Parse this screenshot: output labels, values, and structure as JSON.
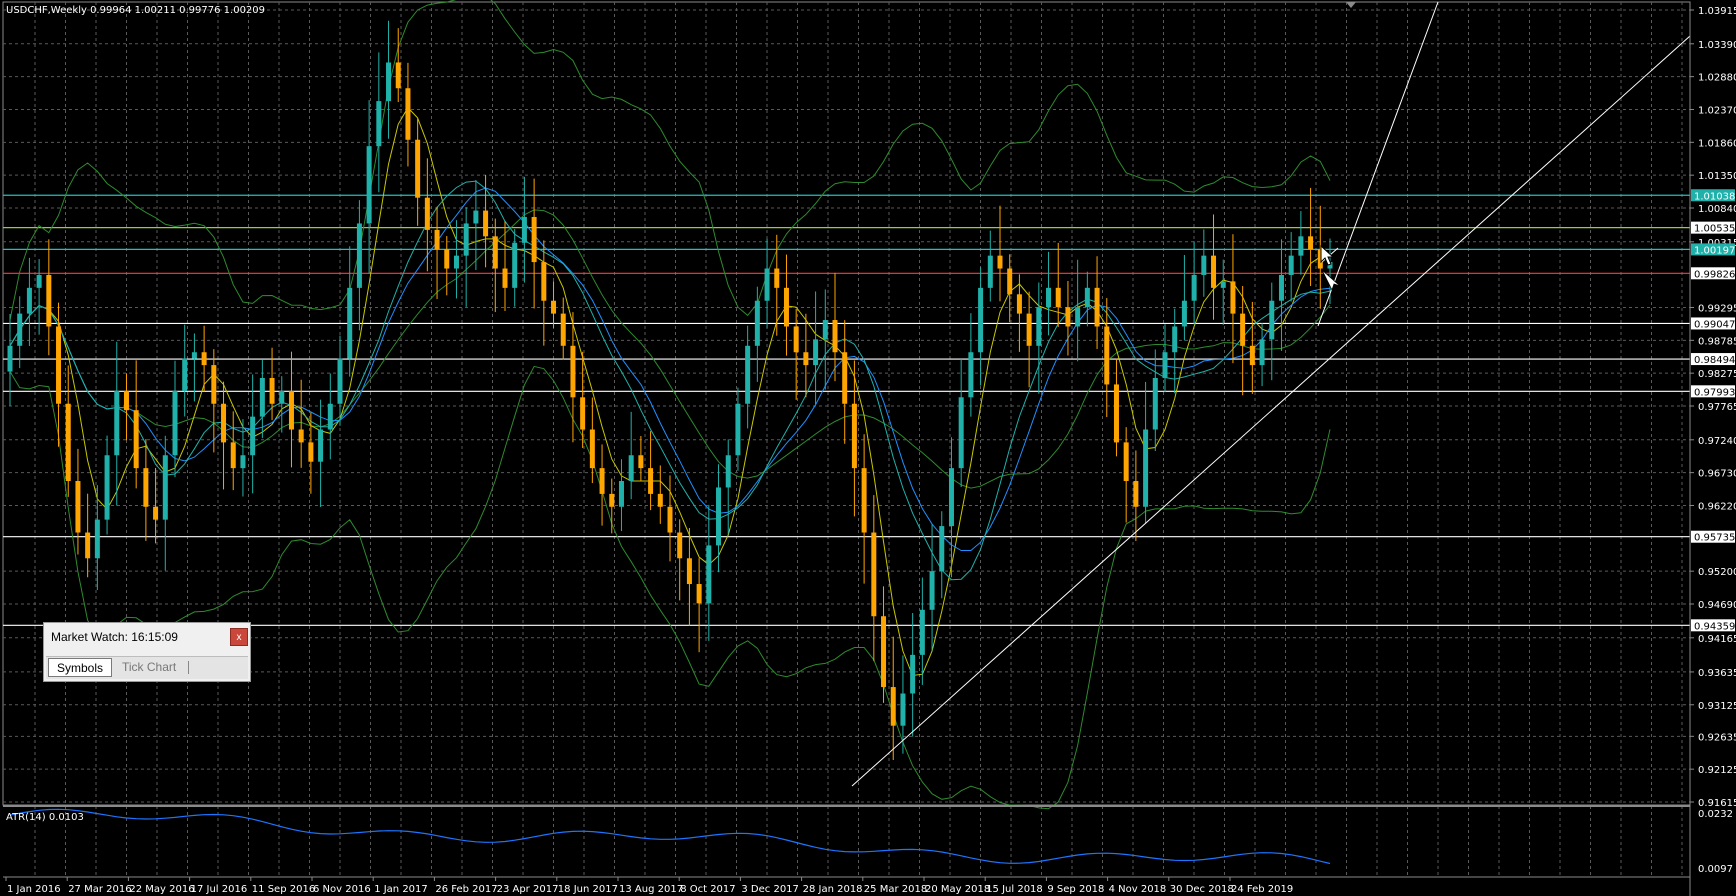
{
  "header": {
    "info": "USDCHF,Weekly  0.99964 1.00211 0.99776 1.00209"
  },
  "price_axis": {
    "labels": [
      "1.03915",
      "1.03390",
      "1.02880",
      "1.02370",
      "1.01860",
      "1.01350",
      "1.00840",
      "1.00315",
      "0.99295",
      "0.98785",
      "0.98275",
      "0.97765",
      "0.97240",
      "0.96730",
      "0.96220",
      "0.95200",
      "0.94690",
      "0.94165",
      "0.93635",
      "0.93125",
      "0.92635",
      "0.92125",
      "0.91615"
    ],
    "levels": [
      "1.01038",
      "1.00535",
      "1.00197",
      "0.99826",
      "0.99047",
      "0.98494",
      "0.97993",
      "0.95735",
      "0.94359"
    ]
  },
  "time_axis": {
    "labels": [
      "1 Jan 2016",
      "27 Mar 2016",
      "22 May 2016",
      "17 Jul 2016",
      "11 Sep 2016",
      "6 Nov 2016",
      "1 Jan 2017",
      "26 Feb 2017",
      "23 Apr 2017",
      "18 Jun 2017",
      "13 Aug 2017",
      "8 Oct 2017",
      "3 Dec 2017",
      "28 Jan 2018",
      "25 Mar 2018",
      "20 May 2018",
      "15 Jul 2018",
      "9 Sep 2018",
      "4 Nov 2018",
      "30 Dec 2018",
      "24 Feb 2019"
    ]
  },
  "indicator": {
    "label": "ATR(14) 0.0103",
    "axis_labels": [
      "0.0232",
      "0.0097"
    ]
  },
  "market_watch": {
    "title": "Market Watch: 16:15:09",
    "close_label": "x",
    "tabs": [
      "Symbols",
      "Tick Chart"
    ],
    "tab_separator": "|"
  },
  "colors": {
    "background": "#000000",
    "grid": "#5a5a5a",
    "bull": "#20b2aa",
    "bear": "#ffa500",
    "bands": "#2e8b2e",
    "ma_fast": "#c8c800",
    "ma_slow": "#1e90ff",
    "ma_teal": "#20b2aa",
    "trendline": "#ffffff",
    "atr": "#1e74ff",
    "tag_cyan": "#20b2aa",
    "tag_white": "#ffffff",
    "level_cyan": "#20c0c0",
    "level_red": "#ff3b3b",
    "level_green": "#9acd32",
    "level_white": "#ffffff"
  },
  "chart_data": {
    "type": "candlestick",
    "symbol": "USDCHF",
    "timeframe": "Weekly",
    "last_bar": {
      "open": 0.99964,
      "high": 1.00211,
      "low": 0.99776,
      "close": 1.00209
    },
    "ylim": [
      0.91615,
      1.03915
    ],
    "horizontal_levels": [
      {
        "value": 1.01038,
        "style": "cyan"
      },
      {
        "value": 1.00535,
        "style": "green"
      },
      {
        "value": 1.00197,
        "style": "cyan"
      },
      {
        "value": 0.99826,
        "style": "red"
      },
      {
        "value": 0.99047,
        "style": "white"
      },
      {
        "value": 0.98494,
        "style": "white"
      },
      {
        "value": 0.97993,
        "style": "white"
      },
      {
        "value": 0.95735,
        "style": "white"
      },
      {
        "value": 0.94359,
        "style": "white"
      }
    ],
    "close_series": [
      0.987,
      0.992,
      0.996,
      0.998,
      0.99,
      0.978,
      0.966,
      0.958,
      0.954,
      0.96,
      0.97,
      0.98,
      0.977,
      0.968,
      0.962,
      0.96,
      0.97,
      0.98,
      0.985,
      0.986,
      0.984,
      0.978,
      0.972,
      0.968,
      0.97,
      0.976,
      0.982,
      0.978,
      0.98,
      0.974,
      0.972,
      0.969,
      0.974,
      0.978,
      0.985,
      0.996,
      1.006,
      1.018,
      1.025,
      1.031,
      1.027,
      1.019,
      1.01,
      1.005,
      1.002,
      0.999,
      1.001,
      1.006,
      1.008,
      1.004,
      0.999,
      0.996,
      1.003,
      1.007,
      1.0,
      0.994,
      0.992,
      0.987,
      0.979,
      0.974,
      0.968,
      0.964,
      0.962,
      0.966,
      0.97,
      0.968,
      0.964,
      0.962,
      0.958,
      0.954,
      0.95,
      0.947,
      0.956,
      0.965,
      0.97,
      0.978,
      0.987,
      0.994,
      0.999,
      0.996,
      0.99,
      0.986,
      0.984,
      0.988,
      0.991,
      0.986,
      0.978,
      0.968,
      0.958,
      0.945,
      0.934,
      0.928,
      0.933,
      0.939,
      0.946,
      0.952,
      0.959,
      0.968,
      0.979,
      0.986,
      0.996,
      1.001,
      0.999,
      0.995,
      0.992,
      0.987,
      0.993,
      0.996,
      0.993,
      0.99,
      0.993,
      0.996,
      0.99,
      0.981,
      0.972,
      0.966,
      0.962,
      0.974,
      0.982,
      0.986,
      0.99,
      0.994,
      0.998,
      1.001,
      0.996,
      0.997,
      0.992,
      0.987,
      0.984,
      0.988,
      0.994,
      0.998,
      1.001,
      1.004,
      1.002,
      0.999,
      1.0
    ]
  }
}
